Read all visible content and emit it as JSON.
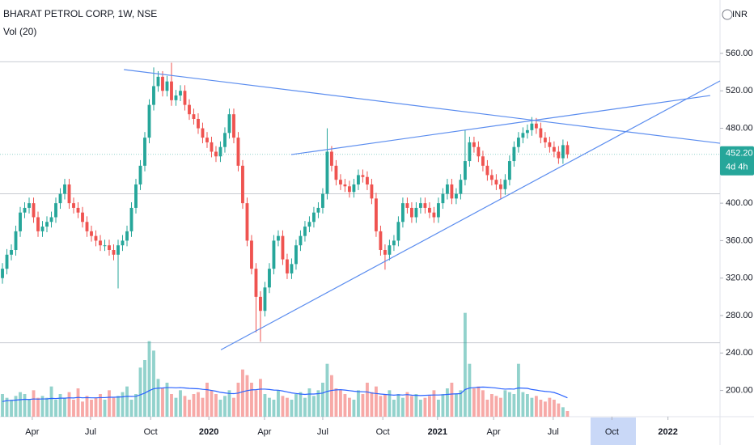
{
  "chart_data": {
    "type": "candlestick",
    "title": "BHARAT PETROL CORP, 1W, NSE",
    "volume_label": "Vol (20)",
    "currency": "INR",
    "up_color": "#26a69a",
    "down_color": "#ef5350",
    "volume_ma_color": "#2962ff",
    "ylim": [
      172,
      617
    ],
    "yticks": [
      {
        "value": 560,
        "label": "560.00"
      },
      {
        "value": 520,
        "label": "520.00"
      },
      {
        "value": 480,
        "label": "480.00"
      },
      {
        "value": 400,
        "label": "400.00"
      },
      {
        "value": 360,
        "label": "360.00"
      },
      {
        "value": 320,
        "label": "320.00"
      },
      {
        "value": 280,
        "label": "280.00"
      },
      {
        "value": 240,
        "label": "240.00"
      },
      {
        "value": 200,
        "label": "200.00"
      }
    ],
    "xlim": [
      -0.55,
      161.3
    ],
    "xticks": [
      {
        "value": 6.7,
        "label": "Apr"
      },
      {
        "value": 19.8,
        "label": "Jul"
      },
      {
        "value": 33.3,
        "label": "Oct"
      },
      {
        "value": 46.4,
        "label": "2020"
      },
      {
        "value": 58.9,
        "label": "Apr"
      },
      {
        "value": 72,
        "label": "Jul"
      },
      {
        "value": 85.5,
        "label": "Oct"
      },
      {
        "value": 97.8,
        "label": "2021"
      },
      {
        "value": 110.4,
        "label": "Apr"
      },
      {
        "value": 123.8,
        "label": "Jul"
      },
      {
        "value": 137,
        "label": "Oct"
      },
      {
        "value": 149.6,
        "label": "2022"
      }
    ],
    "ohlc": [
      [
        320,
        336,
        314,
        330
      ],
      [
        330,
        351,
        324,
        345
      ],
      [
        345,
        356,
        339,
        350
      ],
      [
        350,
        376,
        344,
        370
      ],
      [
        370,
        396,
        364,
        390
      ],
      [
        390,
        401,
        384,
        395
      ],
      [
        395,
        406,
        389,
        400
      ],
      [
        400,
        406,
        379,
        385
      ],
      [
        385,
        391,
        364,
        370
      ],
      [
        370,
        381,
        364,
        375
      ],
      [
        375,
        386,
        369,
        380
      ],
      [
        380,
        391,
        374,
        385
      ],
      [
        385,
        406,
        379,
        400
      ],
      [
        400,
        416,
        394,
        410
      ],
      [
        410,
        426,
        404,
        420
      ],
      [
        420,
        426,
        394,
        400
      ],
      [
        400,
        406,
        389,
        395
      ],
      [
        395,
        401,
        384,
        390
      ],
      [
        390,
        396,
        374,
        380
      ],
      [
        380,
        386,
        364,
        370
      ],
      [
        370,
        376,
        359,
        365
      ],
      [
        365,
        371,
        354,
        360
      ],
      [
        360,
        366,
        349,
        355
      ],
      [
        355,
        361,
        349,
        355
      ],
      [
        355,
        361,
        344,
        350
      ],
      [
        350,
        356,
        339,
        345
      ],
      [
        345,
        361,
        309,
        355
      ],
      [
        355,
        366,
        349,
        360
      ],
      [
        360,
        376,
        354,
        370
      ],
      [
        370,
        401,
        364,
        395
      ],
      [
        395,
        426,
        389,
        420
      ],
      [
        420,
        446,
        414,
        440
      ],
      [
        440,
        476,
        434,
        470
      ],
      [
        470,
        511,
        464,
        505
      ],
      [
        505,
        545,
        499,
        525
      ],
      [
        525,
        541,
        519,
        535
      ],
      [
        535,
        541,
        514,
        520
      ],
      [
        520,
        536,
        514,
        530
      ],
      [
        530,
        550,
        504,
        510
      ],
      [
        510,
        521,
        504,
        515
      ],
      [
        515,
        526,
        509,
        520
      ],
      [
        520,
        526,
        499,
        505
      ],
      [
        505,
        511,
        489,
        495
      ],
      [
        495,
        501,
        484,
        490
      ],
      [
        490,
        496,
        474,
        480
      ],
      [
        480,
        486,
        464,
        470
      ],
      [
        470,
        476,
        459,
        465
      ],
      [
        465,
        471,
        449,
        455
      ],
      [
        455,
        461,
        444,
        450
      ],
      [
        450,
        466,
        444,
        460
      ],
      [
        460,
        481,
        454,
        475
      ],
      [
        475,
        501,
        469,
        495
      ],
      [
        495,
        501,
        464,
        470
      ],
      [
        470,
        476,
        434,
        440
      ],
      [
        440,
        446,
        394,
        400
      ],
      [
        400,
        406,
        354,
        360
      ],
      [
        360,
        366,
        324,
        330
      ],
      [
        330,
        336,
        262,
        300
      ],
      [
        300,
        306,
        252,
        285
      ],
      [
        285,
        316,
        279,
        310
      ],
      [
        310,
        336,
        304,
        330
      ],
      [
        330,
        366,
        324,
        360
      ],
      [
        360,
        371,
        354,
        365
      ],
      [
        365,
        371,
        334,
        340
      ],
      [
        340,
        346,
        319,
        325
      ],
      [
        325,
        341,
        319,
        335
      ],
      [
        335,
        361,
        329,
        355
      ],
      [
        355,
        371,
        349,
        365
      ],
      [
        365,
        381,
        359,
        375
      ],
      [
        375,
        386,
        369,
        380
      ],
      [
        380,
        396,
        374,
        390
      ],
      [
        390,
        401,
        384,
        395
      ],
      [
        395,
        416,
        389,
        410
      ],
      [
        410,
        480,
        404,
        455
      ],
      [
        455,
        461,
        434,
        440
      ],
      [
        440,
        446,
        419,
        425
      ],
      [
        425,
        431,
        414,
        420
      ],
      [
        420,
        426,
        412,
        418
      ],
      [
        418,
        424,
        406,
        412
      ],
      [
        412,
        426,
        406,
        420
      ],
      [
        420,
        436,
        414,
        430
      ],
      [
        430,
        436,
        422,
        428
      ],
      [
        428,
        434,
        414,
        420
      ],
      [
        420,
        426,
        399,
        405
      ],
      [
        405,
        411,
        364,
        370
      ],
      [
        370,
        376,
        344,
        350
      ],
      [
        350,
        356,
        329,
        345
      ],
      [
        345,
        361,
        339,
        355
      ],
      [
        355,
        366,
        349,
        360
      ],
      [
        360,
        386,
        354,
        380
      ],
      [
        380,
        406,
        374,
        400
      ],
      [
        400,
        406,
        389,
        395
      ],
      [
        395,
        401,
        379,
        385
      ],
      [
        385,
        401,
        379,
        395
      ],
      [
        395,
        406,
        389,
        400
      ],
      [
        400,
        406,
        389,
        395
      ],
      [
        395,
        401,
        384,
        390
      ],
      [
        390,
        396,
        379,
        385
      ],
      [
        385,
        406,
        379,
        400
      ],
      [
        400,
        416,
        394,
        410
      ],
      [
        410,
        426,
        404,
        420
      ],
      [
        420,
        426,
        399,
        405
      ],
      [
        405,
        416,
        399,
        410
      ],
      [
        410,
        431,
        404,
        425
      ],
      [
        425,
        478,
        419,
        445
      ],
      [
        445,
        471,
        439,
        465
      ],
      [
        465,
        471,
        454,
        460
      ],
      [
        460,
        466,
        444,
        450
      ],
      [
        450,
        456,
        434,
        440
      ],
      [
        440,
        446,
        424,
        430
      ],
      [
        430,
        436,
        419,
        425
      ],
      [
        425,
        431,
        414,
        420
      ],
      [
        420,
        426,
        404,
        415
      ],
      [
        415,
        431,
        409,
        425
      ],
      [
        425,
        451,
        419,
        445
      ],
      [
        445,
        466,
        439,
        460
      ],
      [
        460,
        476,
        454,
        470
      ],
      [
        470,
        481,
        464,
        475
      ],
      [
        475,
        484,
        469,
        478
      ],
      [
        478,
        492,
        472,
        485
      ],
      [
        485,
        491,
        474,
        480
      ],
      [
        480,
        486,
        464,
        470
      ],
      [
        470,
        476,
        459,
        465
      ],
      [
        465,
        471,
        454,
        460
      ],
      [
        460,
        466,
        449,
        455
      ],
      [
        455,
        461,
        442,
        448
      ],
      [
        448,
        468,
        442,
        462
      ],
      [
        462,
        466,
        448,
        452.2
      ]
    ],
    "volume": [
      12,
      10,
      9,
      11,
      13,
      12,
      9,
      14,
      10,
      11,
      10,
      16,
      9,
      12,
      10,
      13,
      9,
      15,
      8,
      11,
      9,
      10,
      12,
      9,
      14,
      10,
      11,
      13,
      16,
      9,
      12,
      26,
      30,
      40,
      35,
      20,
      15,
      18,
      12,
      10,
      14,
      11,
      9,
      12,
      13,
      10,
      18,
      14,
      12,
      9,
      11,
      14,
      10,
      18,
      25,
      22,
      18,
      14,
      20,
      12,
      10,
      9,
      14,
      11,
      10,
      9,
      12,
      13,
      10,
      15,
      11,
      14,
      18,
      28,
      22,
      15,
      14,
      12,
      10,
      9,
      14,
      12,
      18,
      13,
      16,
      11,
      12,
      14,
      9,
      12,
      10,
      13,
      11,
      12,
      9,
      10,
      11,
      14,
      9,
      12,
      15,
      18,
      12,
      14,
      55,
      28,
      15,
      16,
      14,
      9,
      12,
      11,
      10,
      14,
      13,
      12,
      28,
      13,
      12,
      10,
      11,
      9,
      8,
      10,
      9,
      7,
      5,
      3
    ],
    "volume_ylim": [
      0,
      60
    ],
    "volume_ma": [
      8,
      8.5,
      8.6,
      8.8,
      9,
      9.2,
      9.1,
      9.4,
      9.3,
      9.4,
      9.4,
      9.7,
      9.6,
      9.8,
      9.8,
      10,
      9.9,
      10.2,
      10,
      10.1,
      10,
      10,
      10.1,
      10.1,
      10.3,
      10.3,
      10.4,
      10.5,
      10.8,
      10.7,
      10.8,
      11.6,
      12.5,
      13.8,
      14.8,
      15.1,
      15.2,
      15.4,
      15.4,
      15.3,
      15.4,
      15.2,
      15,
      14.9,
      14.8,
      14.5,
      14.3,
      13.9,
      13.5,
      12.9,
      12.6,
      12.3,
      12.2,
      12.5,
      13.2,
      13.8,
      14.2,
      14.3,
      14.6,
      14.6,
      14.4,
      14.1,
      14,
      13.6,
      13.1,
      12.6,
      12.3,
      12,
      11.8,
      12,
      12,
      12.2,
      12.5,
      13.4,
      13.9,
      14.2,
      14.3,
      14.1,
      13.8,
      13.5,
      13.3,
      13.2,
      13.1,
      12.5,
      12.3,
      12,
      11.8,
      11.6,
      11.4,
      11.6,
      11.5,
      11.7,
      11.4,
      11.3,
      11.2,
      11.3,
      11.4,
      11.5,
      11.5,
      11.6,
      11.8,
      12,
      12.1,
      12.2,
      14.4,
      15.2,
      15.4,
      15.6,
      15.7,
      15.6,
      15.4,
      15.2,
      14.8,
      14.6,
      14.7,
      14.6,
      15.2,
      15.1,
      15,
      14.4,
      14.1,
      13.7,
      13.4,
      13.2,
      12.8,
      12,
      11,
      10
    ],
    "trendlines": [
      {
        "x": [
          27.3,
          161.3
        ],
        "y": [
          542.7,
          464
        ],
        "color": "#5b8def"
      },
      {
        "x": [
          64.9,
          159.1
        ],
        "y": [
          451.9,
          515
        ],
        "color": "#5b8def"
      },
      {
        "x": [
          49.1,
          161.3
        ],
        "y": [
          243.4,
          530.6
        ],
        "color": "#5b8def"
      }
    ],
    "levels": [
      551,
      410,
      251
    ],
    "last_price": {
      "value": 452.2,
      "label": "452.20"
    },
    "countdown": "4d 4h"
  }
}
